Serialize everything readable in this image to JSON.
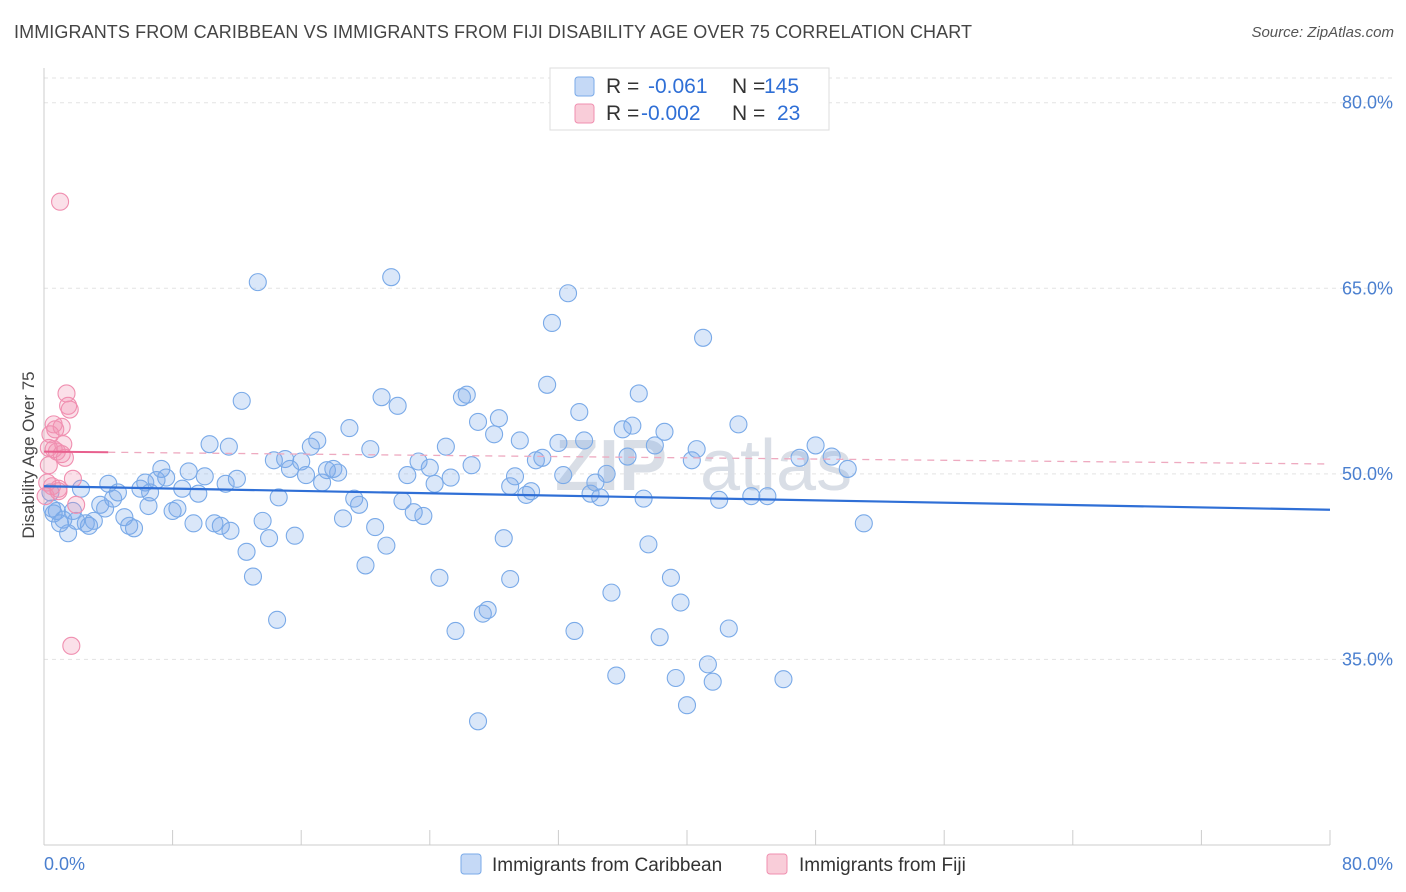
{
  "title": "IMMIGRANTS FROM CARIBBEAN VS IMMIGRANTS FROM FIJI DISABILITY AGE OVER 75 CORRELATION CHART",
  "source": "Source: ZipAtlas.com",
  "watermark": {
    "zip": "ZIP",
    "atlas": "atlas"
  },
  "chart_data": {
    "type": "scatter",
    "ylabel": "Disability Age Over 75",
    "xlim": [
      0,
      80
    ],
    "ylim": [
      20,
      82
    ],
    "x_ticks": [
      "0.0%",
      "80.0%"
    ],
    "y_ticks": [
      {
        "value": 80,
        "label": "80.0%"
      },
      {
        "value": 65,
        "label": "65.0%"
      },
      {
        "value": 50,
        "label": "50.0%"
      },
      {
        "value": 35,
        "label": "35.0%"
      }
    ],
    "grid": true,
    "legend_top": [
      {
        "r_label": "R =",
        "r_value": "-0.061",
        "n_label": "N =",
        "n_value": "145",
        "color": "#7aaae8"
      },
      {
        "r_label": "R =",
        "r_value": "-0.002",
        "n_label": "N =",
        "n_value": "23",
        "color": "#f08fb0"
      }
    ],
    "series": [
      {
        "name": "Immigrants from Caribbean",
        "color": "#7aaae8",
        "trend": {
          "x": [
            0,
            80
          ],
          "y": [
            49.0,
            47.1
          ]
        },
        "points": [
          [
            0.4,
            48.5
          ],
          [
            0.5,
            47.2
          ],
          [
            0.6,
            46.8
          ],
          [
            0.8,
            47.0
          ],
          [
            1.0,
            46.0
          ],
          [
            1.2,
            46.3
          ],
          [
            1.5,
            45.2
          ],
          [
            1.8,
            47.0
          ],
          [
            2.0,
            46.2
          ],
          [
            2.3,
            48.8
          ],
          [
            2.6,
            46.0
          ],
          [
            2.8,
            45.8
          ],
          [
            3.1,
            46.2
          ],
          [
            3.5,
            47.5
          ],
          [
            3.8,
            47.2
          ],
          [
            4.0,
            49.2
          ],
          [
            4.3,
            48.0
          ],
          [
            4.6,
            48.5
          ],
          [
            5.0,
            46.5
          ],
          [
            5.3,
            45.8
          ],
          [
            5.6,
            45.6
          ],
          [
            6.0,
            48.8
          ],
          [
            6.3,
            49.3
          ],
          [
            6.6,
            48.5
          ],
          [
            7.0,
            49.5
          ],
          [
            7.3,
            50.4
          ],
          [
            7.6,
            49.7
          ],
          [
            8.0,
            47.0
          ],
          [
            8.3,
            47.2
          ],
          [
            8.6,
            48.8
          ],
          [
            9.0,
            50.2
          ],
          [
            9.3,
            46.0
          ],
          [
            9.6,
            48.4
          ],
          [
            10.0,
            49.8
          ],
          [
            10.3,
            52.4
          ],
          [
            10.6,
            46.0
          ],
          [
            11.0,
            45.8
          ],
          [
            11.3,
            49.2
          ],
          [
            11.6,
            45.4
          ],
          [
            12.0,
            49.6
          ],
          [
            12.3,
            55.9
          ],
          [
            12.6,
            43.7
          ],
          [
            13.0,
            41.7
          ],
          [
            13.3,
            65.5
          ],
          [
            13.6,
            46.2
          ],
          [
            14.0,
            44.8
          ],
          [
            14.3,
            51.1
          ],
          [
            14.6,
            48.1
          ],
          [
            15.0,
            51.2
          ],
          [
            15.3,
            50.4
          ],
          [
            15.6,
            45.0
          ],
          [
            16.0,
            51.0
          ],
          [
            16.3,
            49.9
          ],
          [
            16.6,
            52.2
          ],
          [
            17.0,
            52.7
          ],
          [
            17.3,
            49.3
          ],
          [
            17.6,
            50.3
          ],
          [
            18.0,
            50.4
          ],
          [
            18.3,
            50.1
          ],
          [
            18.6,
            46.4
          ],
          [
            19.0,
            53.7
          ],
          [
            19.3,
            48.0
          ],
          [
            19.6,
            47.5
          ],
          [
            20.0,
            42.6
          ],
          [
            20.3,
            52.0
          ],
          [
            20.6,
            45.7
          ],
          [
            21.0,
            56.2
          ],
          [
            21.3,
            44.2
          ],
          [
            21.6,
            65.9
          ],
          [
            22.0,
            55.5
          ],
          [
            22.3,
            47.8
          ],
          [
            22.6,
            49.9
          ],
          [
            23.0,
            46.9
          ],
          [
            23.3,
            51.0
          ],
          [
            23.6,
            46.6
          ],
          [
            24.0,
            50.5
          ],
          [
            24.3,
            49.2
          ],
          [
            24.6,
            41.6
          ],
          [
            25.0,
            52.2
          ],
          [
            25.3,
            49.7
          ],
          [
            25.6,
            37.3
          ],
          [
            26.0,
            56.2
          ],
          [
            26.3,
            56.4
          ],
          [
            26.6,
            50.7
          ],
          [
            27.0,
            54.2
          ],
          [
            27.3,
            38.7
          ],
          [
            27.6,
            39.0
          ],
          [
            28.0,
            53.2
          ],
          [
            28.3,
            54.5
          ],
          [
            28.6,
            44.8
          ],
          [
            29.0,
            49.0
          ],
          [
            29.3,
            49.8
          ],
          [
            29.6,
            52.7
          ],
          [
            30.0,
            48.3
          ],
          [
            30.3,
            48.6
          ],
          [
            30.6,
            51.1
          ],
          [
            31.0,
            51.3
          ],
          [
            31.3,
            57.2
          ],
          [
            31.6,
            62.2
          ],
          [
            32.0,
            52.5
          ],
          [
            32.3,
            49.9
          ],
          [
            32.6,
            64.6
          ],
          [
            33.0,
            37.3
          ],
          [
            33.3,
            55.0
          ],
          [
            33.6,
            52.7
          ],
          [
            34.0,
            48.4
          ],
          [
            34.3,
            49.3
          ],
          [
            34.6,
            48.1
          ],
          [
            35.0,
            50.0
          ],
          [
            35.3,
            40.4
          ],
          [
            35.6,
            33.7
          ],
          [
            36.0,
            53.6
          ],
          [
            36.3,
            51.4
          ],
          [
            36.6,
            53.9
          ],
          [
            37.0,
            56.5
          ],
          [
            37.3,
            48.0
          ],
          [
            37.6,
            44.3
          ],
          [
            38.0,
            52.3
          ],
          [
            38.3,
            36.8
          ],
          [
            38.6,
            53.4
          ],
          [
            39.0,
            41.6
          ],
          [
            39.3,
            33.5
          ],
          [
            39.6,
            39.6
          ],
          [
            40.0,
            31.3
          ],
          [
            40.3,
            51.1
          ],
          [
            40.6,
            52.0
          ],
          [
            41.0,
            61.0
          ],
          [
            41.3,
            34.6
          ],
          [
            41.6,
            33.2
          ],
          [
            42.0,
            47.9
          ],
          [
            42.6,
            37.5
          ],
          [
            43.2,
            54.0
          ],
          [
            44.0,
            48.2
          ],
          [
            45.0,
            48.2
          ],
          [
            46.0,
            33.4
          ],
          [
            47.0,
            51.3
          ],
          [
            48.0,
            52.3
          ],
          [
            49.0,
            51.4
          ],
          [
            50.0,
            50.4
          ],
          [
            51.0,
            46.0
          ],
          [
            27.0,
            30.0
          ],
          [
            29.0,
            41.5
          ],
          [
            11.5,
            52.2
          ],
          [
            14.5,
            38.2
          ],
          [
            6.5,
            47.4
          ]
        ]
      },
      {
        "name": "Immigrants from Fiji",
        "color": "#f08fb0",
        "trend": {
          "x": [
            0,
            80
          ],
          "y": [
            51.8,
            50.8
          ]
        },
        "points": [
          [
            0.1,
            48.2
          ],
          [
            0.2,
            49.3
          ],
          [
            0.3,
            52.1
          ],
          [
            0.4,
            53.2
          ],
          [
            0.5,
            49.0
          ],
          [
            0.6,
            54.0
          ],
          [
            0.7,
            53.6
          ],
          [
            0.8,
            51.8
          ],
          [
            0.9,
            48.6
          ],
          [
            1.0,
            72.0
          ],
          [
            1.1,
            51.6
          ],
          [
            1.2,
            52.4
          ],
          [
            1.3,
            51.3
          ],
          [
            1.4,
            56.5
          ],
          [
            1.5,
            55.5
          ],
          [
            1.6,
            55.2
          ],
          [
            1.7,
            36.1
          ],
          [
            1.8,
            49.6
          ],
          [
            2.0,
            47.5
          ],
          [
            0.3,
            50.7
          ],
          [
            0.6,
            52.0
          ],
          [
            0.9,
            48.8
          ],
          [
            1.1,
            53.8
          ]
        ]
      }
    ],
    "legend_bottom": [
      "Immigrants from Caribbean",
      "Immigrants from Fiji"
    ]
  }
}
